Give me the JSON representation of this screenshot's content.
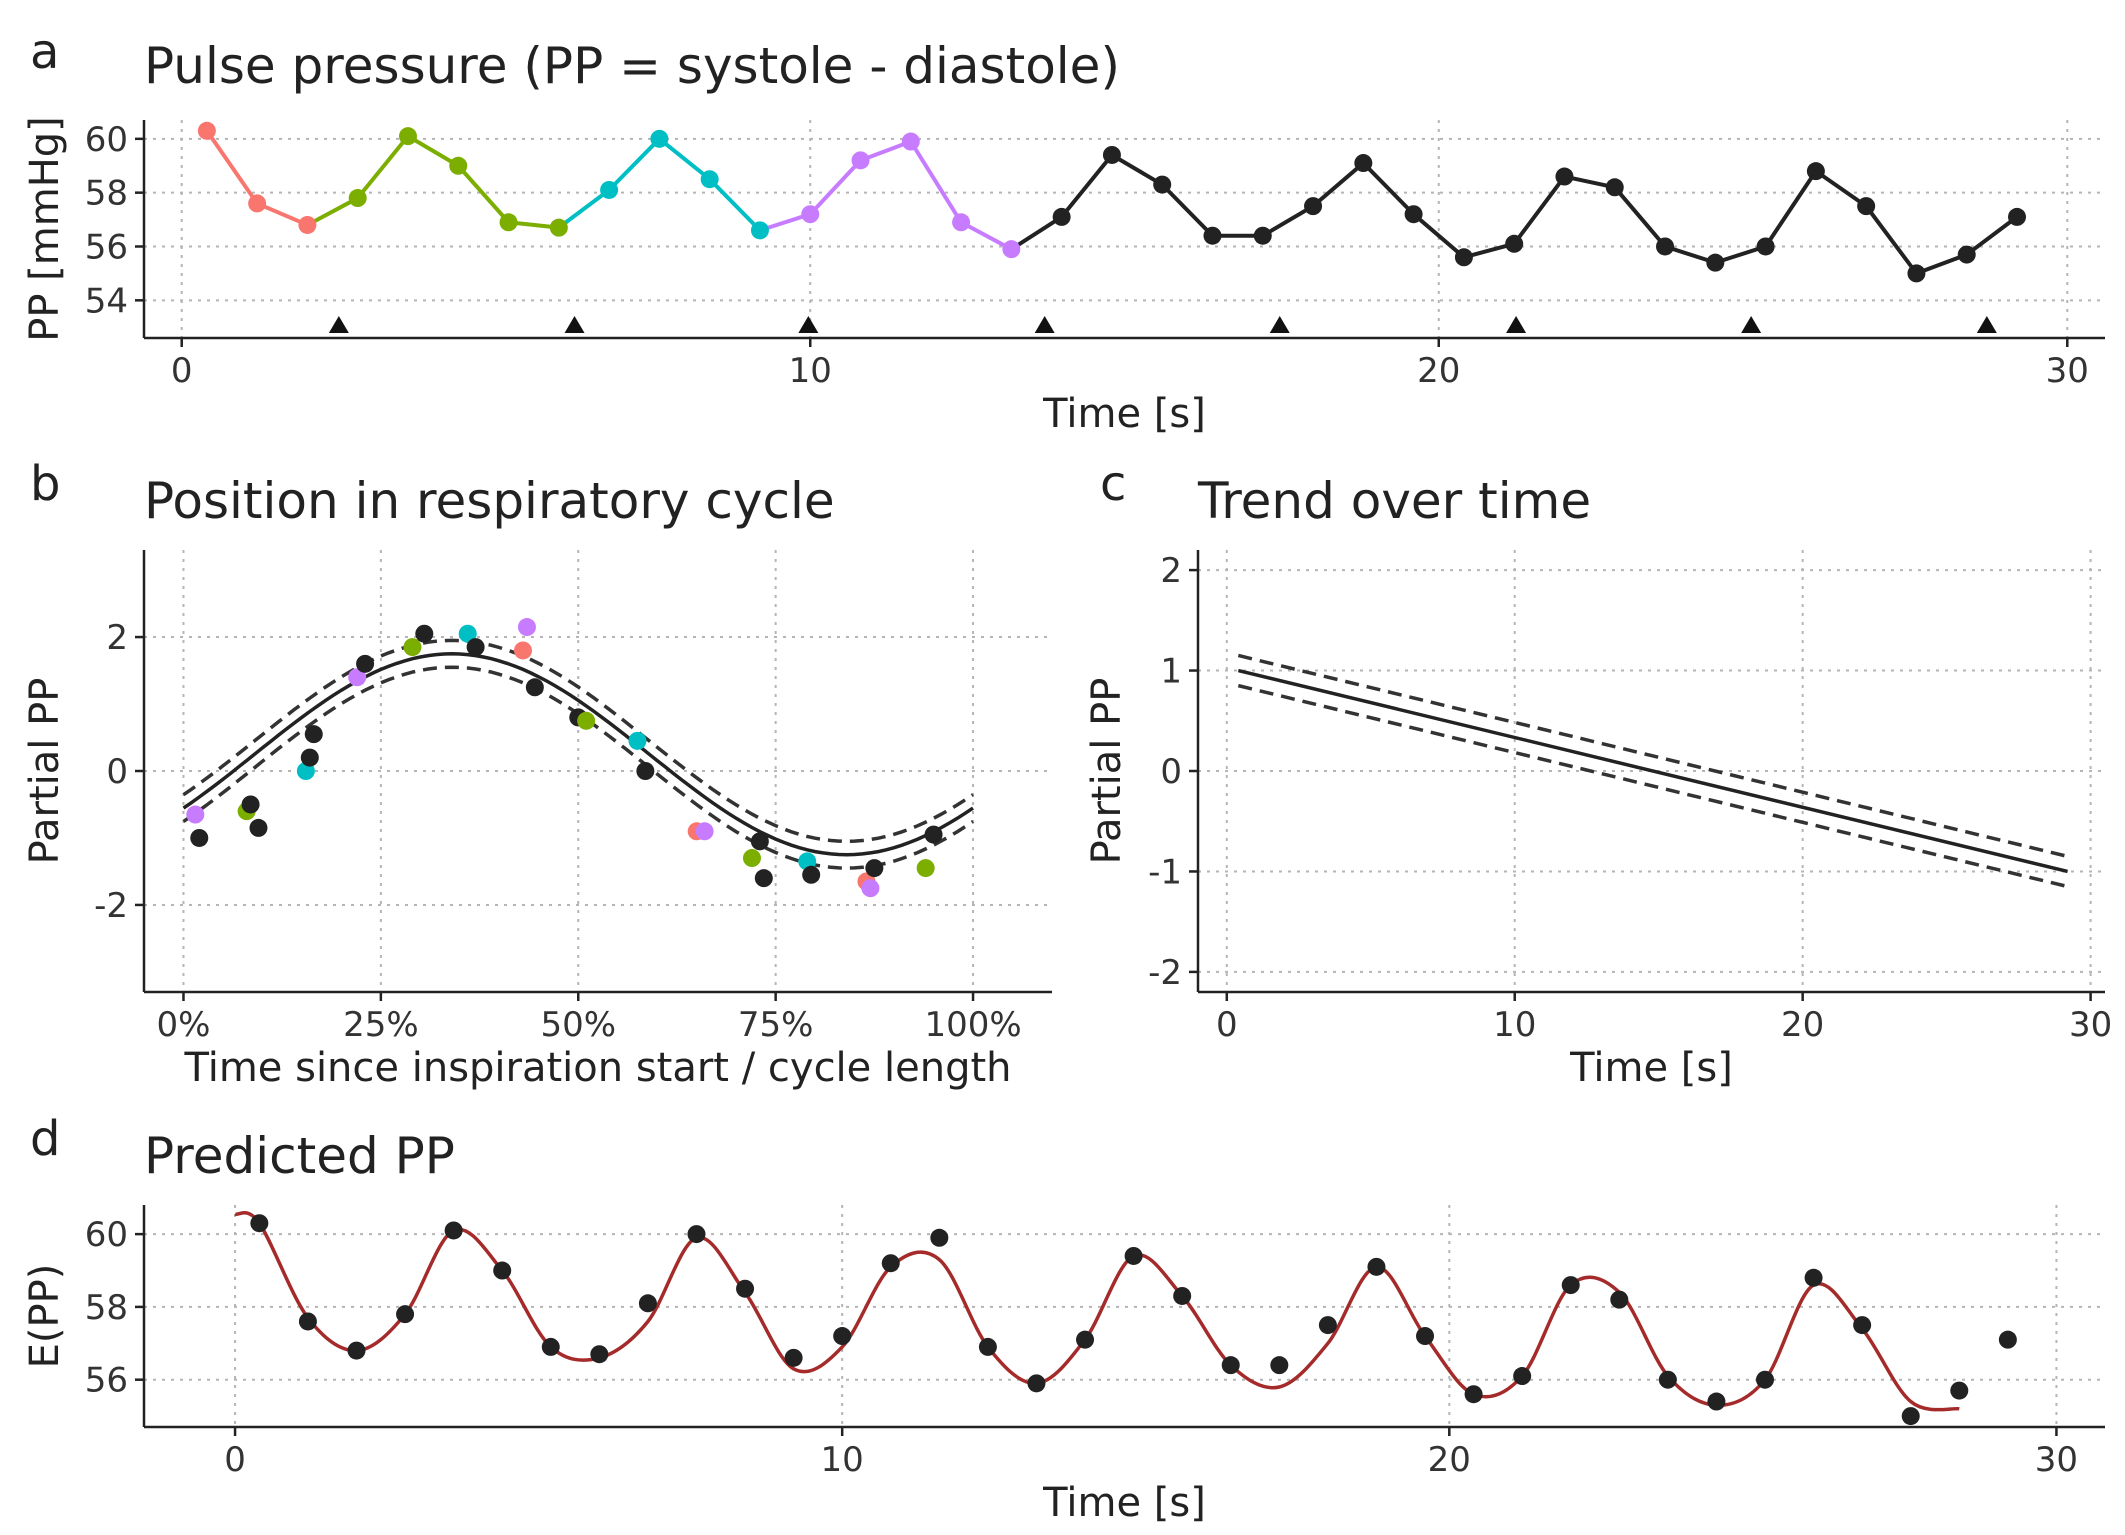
{
  "colors": {
    "cycle1": "#F8766D",
    "cycle2": "#7CAE00",
    "cycle3": "#00BFC4",
    "cycle4": "#C77CFF",
    "other": "#222222",
    "fit": "#A52A2A"
  },
  "chart_data": [
    {
      "id": "a",
      "panel_tag": "a",
      "type": "line",
      "title": "Pulse pressure (PP = systole - diastole)",
      "xlabel": "Time [s]",
      "ylabel": "PP [mmHg]",
      "xlim": [
        -0.6,
        30.6
      ],
      "ylim": [
        52.6,
        60.7
      ],
      "xticks": [
        0,
        10,
        20,
        30
      ],
      "yticks": [
        54,
        56,
        58,
        60
      ],
      "grid": true,
      "points": [
        {
          "x": 0.4,
          "y": 60.3,
          "g": 1
        },
        {
          "x": 1.2,
          "y": 57.6,
          "g": 1
        },
        {
          "x": 2.0,
          "y": 56.8,
          "g": 1
        },
        {
          "x": 2.8,
          "y": 57.8,
          "g": 2
        },
        {
          "x": 3.6,
          "y": 60.1,
          "g": 2
        },
        {
          "x": 4.4,
          "y": 59.0,
          "g": 2
        },
        {
          "x": 5.2,
          "y": 56.9,
          "g": 2
        },
        {
          "x": 6.0,
          "y": 56.7,
          "g": 2
        },
        {
          "x": 6.8,
          "y": 58.1,
          "g": 3
        },
        {
          "x": 7.6,
          "y": 60.0,
          "g": 3
        },
        {
          "x": 8.4,
          "y": 58.5,
          "g": 3
        },
        {
          "x": 9.2,
          "y": 56.6,
          "g": 3
        },
        {
          "x": 10.0,
          "y": 57.2,
          "g": 4
        },
        {
          "x": 10.8,
          "y": 59.2,
          "g": 4
        },
        {
          "x": 11.6,
          "y": 59.9,
          "g": 4
        },
        {
          "x": 12.4,
          "y": 56.9,
          "g": 4
        },
        {
          "x": 13.2,
          "y": 55.9,
          "g": 4
        },
        {
          "x": 14.0,
          "y": 57.1,
          "g": 0
        },
        {
          "x": 14.8,
          "y": 59.4,
          "g": 0
        },
        {
          "x": 15.6,
          "y": 58.3,
          "g": 0
        },
        {
          "x": 16.4,
          "y": 56.4,
          "g": 0
        },
        {
          "x": 17.2,
          "y": 56.4,
          "g": 0
        },
        {
          "x": 18.0,
          "y": 57.5,
          "g": 0
        },
        {
          "x": 18.8,
          "y": 59.1,
          "g": 0
        },
        {
          "x": 19.6,
          "y": 57.2,
          "g": 0
        },
        {
          "x": 20.4,
          "y": 55.6,
          "g": 0
        },
        {
          "x": 21.2,
          "y": 56.1,
          "g": 0
        },
        {
          "x": 22.0,
          "y": 58.6,
          "g": 0
        },
        {
          "x": 22.8,
          "y": 58.2,
          "g": 0
        },
        {
          "x": 23.6,
          "y": 56.0,
          "g": 0
        },
        {
          "x": 24.4,
          "y": 55.4,
          "g": 0
        },
        {
          "x": 25.2,
          "y": 56.0,
          "g": 0
        },
        {
          "x": 26.0,
          "y": 58.8,
          "g": 0
        },
        {
          "x": 26.8,
          "y": 57.5,
          "g": 0
        },
        {
          "x": 27.6,
          "y": 55.0,
          "g": 0
        },
        {
          "x": 28.4,
          "y": 55.7,
          "g": 0
        },
        {
          "x": 29.2,
          "y": 57.1,
          "g": 0
        }
      ],
      "inspiration_starts": [
        2.5,
        6.25,
        9.97,
        13.73,
        17.47,
        21.23,
        24.97,
        28.72
      ]
    },
    {
      "id": "b",
      "panel_tag": "b",
      "type": "scatter",
      "title": "Position in respiratory cycle",
      "xlabel": "Time since inspiration start / cycle length",
      "ylabel": "Partial PP",
      "xlim": [
        -0.05,
        1.1
      ],
      "ylim": [
        -3.3,
        3.3
      ],
      "xticks": [
        0,
        0.25,
        0.5,
        0.75,
        1.0
      ],
      "xticklabels": [
        "0%",
        "25%",
        "50%",
        "75%",
        "100%"
      ],
      "yticks": [
        -2,
        0,
        2
      ],
      "grid": true,
      "fit_amplitude": 1.5,
      "fit_offset": 0.25,
      "fit_peak": 0.34,
      "ci_halfwidth": 0.2,
      "points": [
        {
          "x": 0.015,
          "y": -0.65,
          "g": 4
        },
        {
          "x": 0.02,
          "y": -1.0,
          "g": 0
        },
        {
          "x": 0.08,
          "y": -0.6,
          "g": 2
        },
        {
          "x": 0.085,
          "y": -0.5,
          "g": 0
        },
        {
          "x": 0.095,
          "y": -0.85,
          "g": 0
        },
        {
          "x": 0.155,
          "y": 0.0,
          "g": 3
        },
        {
          "x": 0.16,
          "y": 0.2,
          "g": 0
        },
        {
          "x": 0.165,
          "y": 0.55,
          "g": 0
        },
        {
          "x": 0.22,
          "y": 1.4,
          "g": 4
        },
        {
          "x": 0.23,
          "y": 1.6,
          "g": 0
        },
        {
          "x": 0.29,
          "y": 1.85,
          "g": 2
        },
        {
          "x": 0.305,
          "y": 2.05,
          "g": 0
        },
        {
          "x": 0.36,
          "y": 2.05,
          "g": 3
        },
        {
          "x": 0.37,
          "y": 1.85,
          "g": 0
        },
        {
          "x": 0.43,
          "y": 1.8,
          "g": 1
        },
        {
          "x": 0.435,
          "y": 2.15,
          "g": 4
        },
        {
          "x": 0.445,
          "y": 1.25,
          "g": 0
        },
        {
          "x": 0.5,
          "y": 0.8,
          "g": 0
        },
        {
          "x": 0.51,
          "y": 0.75,
          "g": 2
        },
        {
          "x": 0.575,
          "y": 0.45,
          "g": 3
        },
        {
          "x": 0.585,
          "y": 0.0,
          "g": 0
        },
        {
          "x": 0.65,
          "y": -0.9,
          "g": 1
        },
        {
          "x": 0.66,
          "y": -0.9,
          "g": 4
        },
        {
          "x": 0.72,
          "y": -1.3,
          "g": 2
        },
        {
          "x": 0.73,
          "y": -1.05,
          "g": 0
        },
        {
          "x": 0.735,
          "y": -1.6,
          "g": 0
        },
        {
          "x": 0.79,
          "y": -1.35,
          "g": 3
        },
        {
          "x": 0.795,
          "y": -1.55,
          "g": 0
        },
        {
          "x": 0.865,
          "y": -1.65,
          "g": 1
        },
        {
          "x": 0.87,
          "y": -1.75,
          "g": 4
        },
        {
          "x": 0.875,
          "y": -1.45,
          "g": 0
        },
        {
          "x": 0.94,
          "y": -1.45,
          "g": 2
        },
        {
          "x": 0.95,
          "y": -0.95,
          "g": 0
        }
      ]
    },
    {
      "id": "c",
      "panel_tag": "c",
      "type": "line",
      "title": "Trend over time",
      "xlabel": "Time [s]",
      "ylabel": "Partial PP",
      "xlim": [
        -1.0,
        30.5
      ],
      "ylim": [
        -2.2,
        2.2
      ],
      "xticks": [
        0,
        10,
        20,
        30
      ],
      "yticks": [
        -2,
        -1,
        0,
        1,
        2
      ],
      "grid": true,
      "line_start": [
        0.4,
        1.0
      ],
      "line_end": [
        29.2,
        -1.0
      ],
      "ci_halfwidth": 0.15
    },
    {
      "id": "d",
      "panel_tag": "d",
      "type": "line",
      "title": "Predicted PP",
      "xlabel": "Time [s]",
      "ylabel": "E(PP)",
      "xlim": [
        -1.5,
        30.8
      ],
      "ylim": [
        54.7,
        60.8
      ],
      "xticks": [
        0,
        10,
        20,
        30
      ],
      "yticks": [
        56,
        58,
        60
      ],
      "grid": true,
      "prediction_fit": [
        [
          0.0,
          60.55
        ],
        [
          0.4,
          60.3
        ],
        [
          1.2,
          57.7
        ],
        [
          2.0,
          56.8
        ],
        [
          2.8,
          57.8
        ],
        [
          3.6,
          60.1
        ],
        [
          4.4,
          59.0
        ],
        [
          5.2,
          56.9
        ],
        [
          6.0,
          56.6
        ],
        [
          6.8,
          57.6
        ],
        [
          7.6,
          59.9
        ],
        [
          8.4,
          58.4
        ],
        [
          9.2,
          56.3
        ],
        [
          10.0,
          56.9
        ],
        [
          10.8,
          59.1
        ],
        [
          11.6,
          59.3
        ],
        [
          12.4,
          56.9
        ],
        [
          13.2,
          55.9
        ],
        [
          14.0,
          57.1
        ],
        [
          14.8,
          59.4
        ],
        [
          15.6,
          58.3
        ],
        [
          16.4,
          56.4
        ],
        [
          17.2,
          55.8
        ],
        [
          18.0,
          57.0
        ],
        [
          18.8,
          59.1
        ],
        [
          19.6,
          57.2
        ],
        [
          20.4,
          55.6
        ],
        [
          21.2,
          56.1
        ],
        [
          22.0,
          58.6
        ],
        [
          22.8,
          58.4
        ],
        [
          23.6,
          56.1
        ],
        [
          24.4,
          55.3
        ],
        [
          25.2,
          56.0
        ],
        [
          26.0,
          58.6
        ],
        [
          26.8,
          57.4
        ],
        [
          27.6,
          55.4
        ],
        [
          28.4,
          55.2
        ]
      ],
      "points": [
        {
          "x": 0.4,
          "y": 60.3
        },
        {
          "x": 1.2,
          "y": 57.6
        },
        {
          "x": 2.0,
          "y": 56.8
        },
        {
          "x": 2.8,
          "y": 57.8
        },
        {
          "x": 3.6,
          "y": 60.1
        },
        {
          "x": 4.4,
          "y": 59.0
        },
        {
          "x": 5.2,
          "y": 56.9
        },
        {
          "x": 6.0,
          "y": 56.7
        },
        {
          "x": 6.8,
          "y": 58.1
        },
        {
          "x": 7.6,
          "y": 60.0
        },
        {
          "x": 8.4,
          "y": 58.5
        },
        {
          "x": 9.2,
          "y": 56.6
        },
        {
          "x": 10.0,
          "y": 57.2
        },
        {
          "x": 10.8,
          "y": 59.2
        },
        {
          "x": 11.6,
          "y": 59.9
        },
        {
          "x": 12.4,
          "y": 56.9
        },
        {
          "x": 13.2,
          "y": 55.9
        },
        {
          "x": 14.0,
          "y": 57.1
        },
        {
          "x": 14.8,
          "y": 59.4
        },
        {
          "x": 15.6,
          "y": 58.3
        },
        {
          "x": 16.4,
          "y": 56.4
        },
        {
          "x": 17.2,
          "y": 56.4
        },
        {
          "x": 18.0,
          "y": 57.5
        },
        {
          "x": 18.8,
          "y": 59.1
        },
        {
          "x": 19.6,
          "y": 57.2
        },
        {
          "x": 20.4,
          "y": 55.6
        },
        {
          "x": 21.2,
          "y": 56.1
        },
        {
          "x": 22.0,
          "y": 58.6
        },
        {
          "x": 22.8,
          "y": 58.2
        },
        {
          "x": 23.6,
          "y": 56.0
        },
        {
          "x": 24.4,
          "y": 55.4
        },
        {
          "x": 25.2,
          "y": 56.0
        },
        {
          "x": 26.0,
          "y": 58.8
        },
        {
          "x": 26.8,
          "y": 57.5
        },
        {
          "x": 27.6,
          "y": 55.0
        },
        {
          "x": 28.4,
          "y": 55.7
        },
        {
          "x": 29.2,
          "y": 57.1
        }
      ]
    }
  ]
}
